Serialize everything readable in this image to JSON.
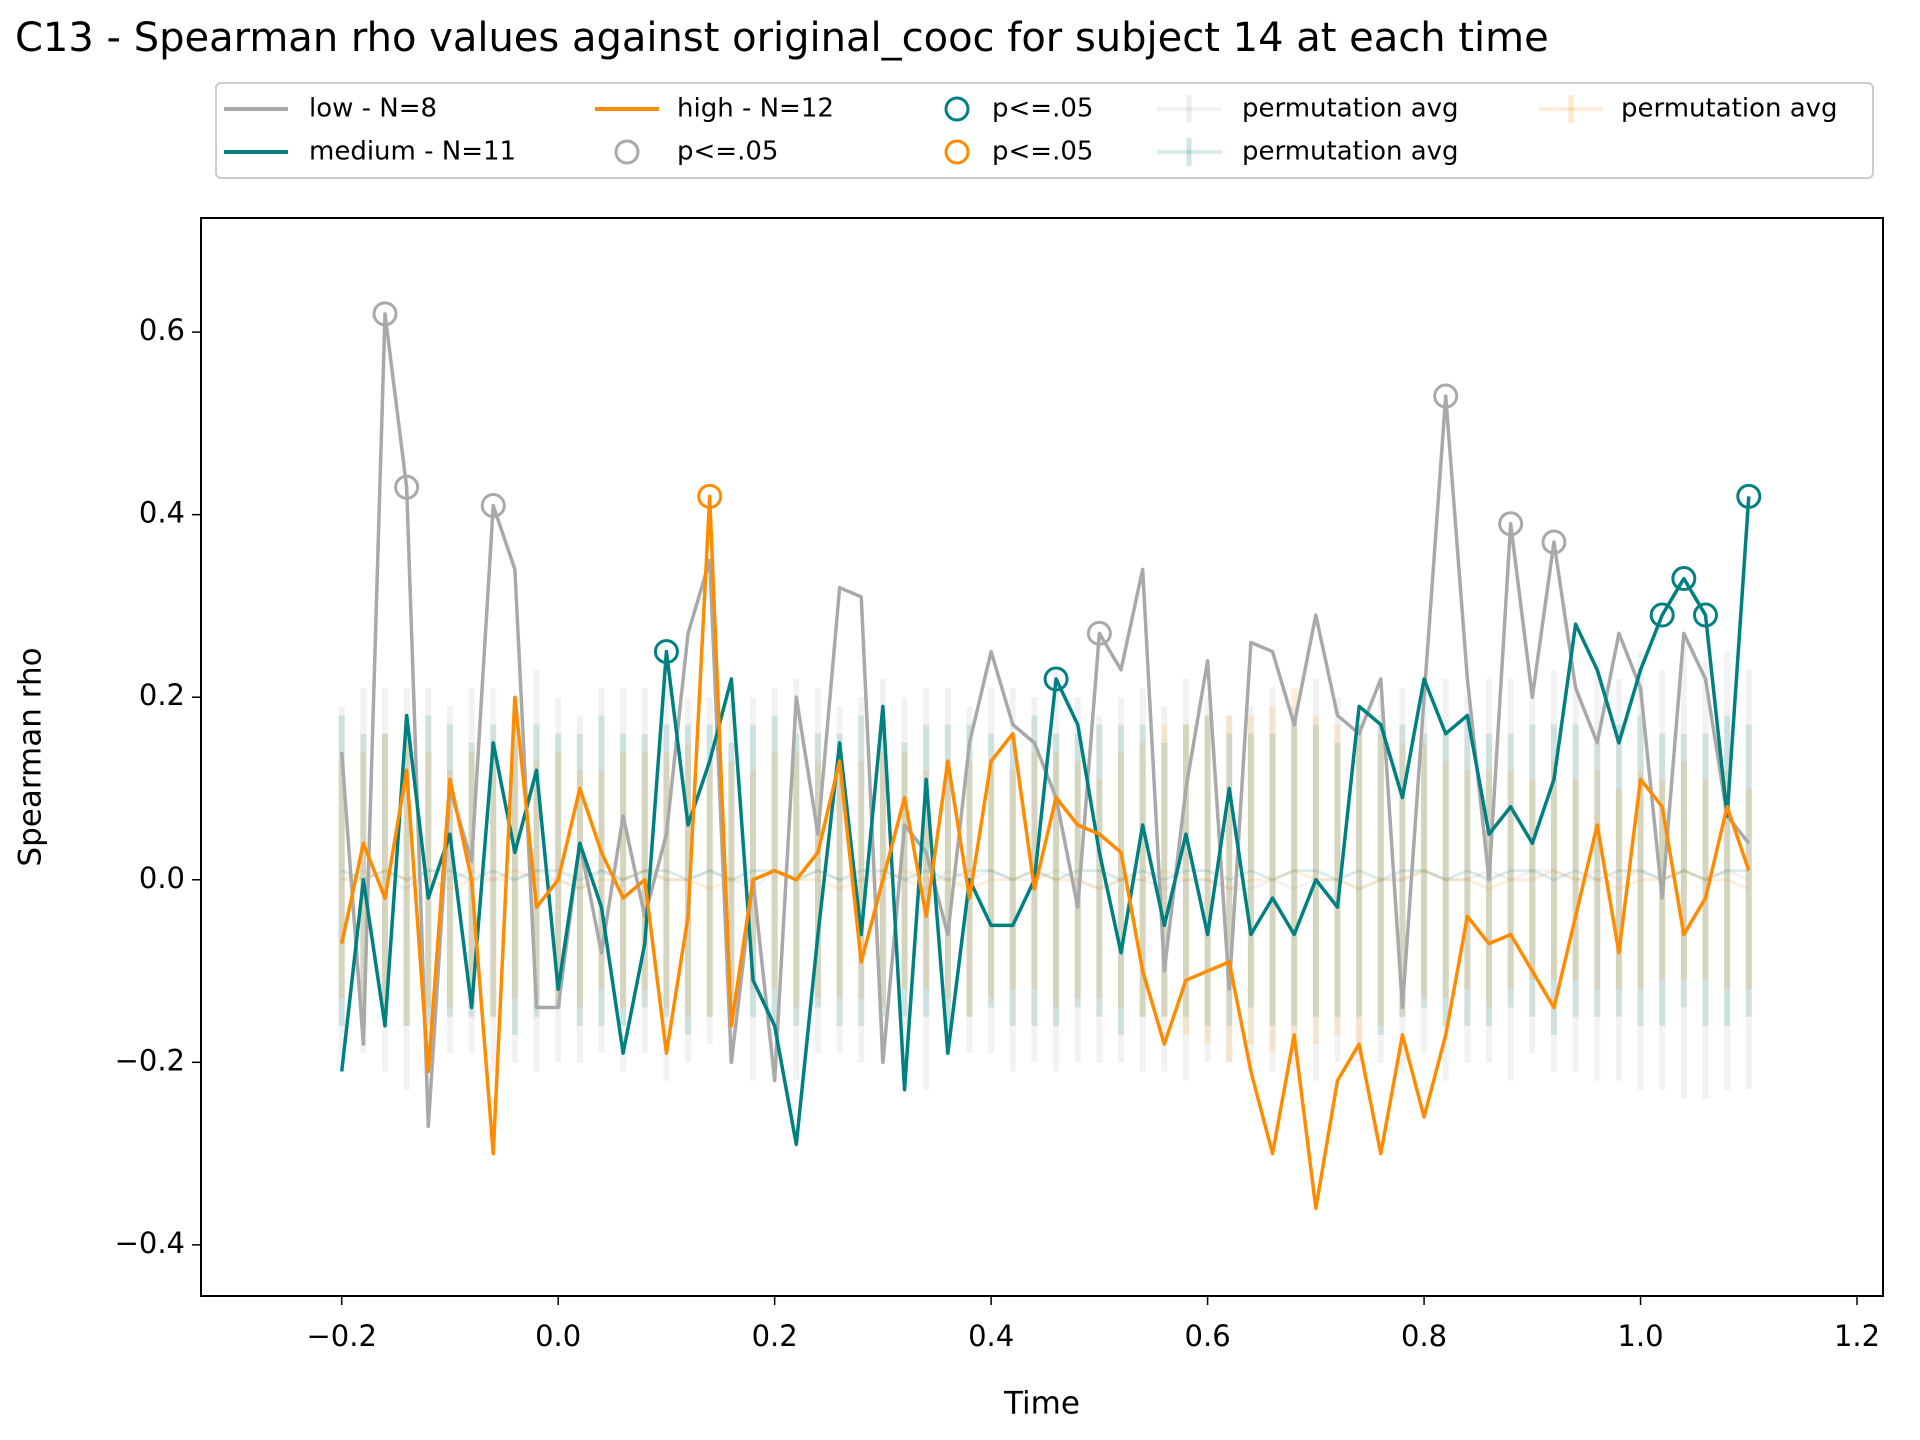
{
  "chart_data": {
    "type": "line",
    "title": "C13 - Spearman rho values against original_cooc for subject 14 at each time",
    "xlabel": "Time",
    "ylabel": "Spearman rho",
    "xlim": [
      -0.33,
      1.224
    ],
    "ylim": [
      -0.456,
      0.725
    ],
    "xticks": [
      {
        "value": -0.2,
        "label": "−0.2"
      },
      {
        "value": 0,
        "label": "0.0"
      },
      0.2,
      0.4,
      0.6,
      0.8,
      {
        "value": 1,
        "label": "1.0"
      },
      1.2
    ],
    "yticks": [
      {
        "value": -0.4,
        "label": "−0.4"
      },
      {
        "value": -0.2,
        "label": "−0.2"
      },
      {
        "value": 0,
        "label": "0.0"
      },
      0.2,
      0.4,
      0.6
    ],
    "legend": {
      "loc": "upper center",
      "ncol": 5
    },
    "x": [
      -0.2,
      -0.18,
      -0.16,
      -0.14,
      -0.12,
      -0.1,
      -0.08,
      -0.06,
      -0.04,
      -0.02,
      0,
      0.02,
      0.04,
      0.06,
      0.08,
      0.1,
      0.12,
      0.14,
      0.16,
      0.18,
      0.2,
      0.22,
      0.24,
      0.26,
      0.28,
      0.3,
      0.32,
      0.34,
      0.36,
      0.38,
      0.4,
      0.42,
      0.44,
      0.46,
      0.48,
      0.5,
      0.52,
      0.54,
      0.56,
      0.58,
      0.6,
      0.62,
      0.64,
      0.66,
      0.68,
      0.7,
      0.72,
      0.74,
      0.76,
      0.78,
      0.8,
      0.82,
      0.84,
      0.86,
      0.88,
      0.9,
      0.92,
      0.94,
      0.96,
      0.98,
      1,
      1.02,
      1.04,
      1.06,
      1.08,
      1.1
    ],
    "series": [
      {
        "name": "low - N=8",
        "color": "#a9a9a9",
        "values": [
          0.14,
          -0.18,
          0.62,
          0.43,
          -0.27,
          0.1,
          0.02,
          0.41,
          0.34,
          -0.14,
          -0.14,
          0.04,
          -0.08,
          0.07,
          -0.04,
          0.05,
          0.27,
          0.35,
          -0.2,
          0.0,
          -0.22,
          0.2,
          0.05,
          0.32,
          0.31,
          -0.2,
          0.06,
          0.03,
          -0.06,
          0.15,
          0.25,
          0.17,
          0.15,
          0.09,
          -0.03,
          0.27,
          0.23,
          0.34,
          -0.1,
          0.1,
          0.24,
          -0.12,
          0.26,
          0.25,
          0.17,
          0.29,
          0.18,
          0.16,
          0.22,
          -0.14,
          0.2,
          0.53,
          0.22,
          0.0,
          0.39,
          0.2,
          0.37,
          0.21,
          0.15,
          0.27,
          0.21,
          -0.02,
          0.27,
          0.22,
          0.07,
          0.04
        ]
      },
      {
        "name": "medium - N=11",
        "color": "#008080",
        "values": [
          -0.21,
          0.0,
          -0.16,
          0.18,
          -0.02,
          0.05,
          -0.14,
          0.15,
          0.03,
          0.12,
          -0.12,
          0.04,
          -0.03,
          -0.19,
          -0.07,
          0.25,
          0.06,
          0.13,
          0.22,
          -0.11,
          -0.16,
          -0.29,
          -0.06,
          0.15,
          -0.06,
          0.19,
          -0.23,
          0.11,
          -0.19,
          0.0,
          -0.05,
          -0.05,
          0.0,
          0.22,
          0.17,
          0.03,
          -0.08,
          0.06,
          -0.05,
          0.05,
          -0.06,
          0.1,
          -0.06,
          -0.02,
          -0.06,
          0.0,
          -0.03,
          0.19,
          0.17,
          0.09,
          0.22,
          0.16,
          0.18,
          0.05,
          0.08,
          0.04,
          0.11,
          0.28,
          0.23,
          0.15,
          0.23,
          0.29,
          0.33,
          0.29,
          0.07,
          0.42
        ]
      },
      {
        "name": "high - N=12",
        "color": "#ff8c00",
        "values": [
          -0.07,
          0.04,
          -0.02,
          0.12,
          -0.21,
          0.11,
          0.0,
          -0.3,
          0.2,
          -0.03,
          0.0,
          0.1,
          0.03,
          -0.02,
          0.0,
          -0.19,
          -0.04,
          0.42,
          -0.16,
          0.0,
          0.01,
          0.0,
          0.03,
          0.13,
          -0.09,
          0.0,
          0.09,
          -0.04,
          0.13,
          -0.02,
          0.13,
          0.16,
          -0.01,
          0.09,
          0.06,
          0.05,
          0.03,
          -0.1,
          -0.18,
          -0.11,
          -0.1,
          -0.09,
          -0.21,
          -0.3,
          -0.17,
          -0.36,
          -0.22,
          -0.18,
          -0.3,
          -0.17,
          -0.26,
          -0.17,
          -0.04,
          -0.07,
          -0.06,
          -0.1,
          -0.14,
          -0.04,
          0.06,
          -0.08,
          0.11,
          0.08,
          -0.06,
          -0.02,
          0.08,
          0.01
        ]
      }
    ],
    "significance": [
      {
        "name": "p<=.05",
        "color": "#a9a9a9",
        "x": [
          -0.16,
          -0.14,
          -0.06,
          0.5,
          0.82,
          0.88,
          0.92
        ],
        "values": [
          0.62,
          0.43,
          0.41,
          0.27,
          0.53,
          0.39,
          0.37
        ]
      },
      {
        "name": "p<=.05",
        "color": "#008080",
        "x": [
          0.1,
          0.46,
          1.02,
          1.04,
          1.06,
          1.1
        ],
        "values": [
          0.25,
          0.22,
          0.29,
          0.33,
          0.29,
          0.42
        ]
      },
      {
        "name": "p<=.05",
        "color": "#ff8c00",
        "x": [
          0.14
        ],
        "values": [
          0.42
        ]
      }
    ],
    "permutation": [
      {
        "name": "permutation avg",
        "color": "#a9a9a9",
        "values": [
          0.0,
          0.01,
          0.0,
          -0.01,
          0.01,
          0.0,
          0.01,
          0.0,
          0.0,
          0.01,
          0.0,
          -0.01,
          0.01,
          0.0,
          0.01,
          0.0,
          0.0,
          0.01,
          0.0,
          -0.01,
          0.01,
          0.0,
          0.01,
          0.0,
          0.0,
          0.01,
          0.0,
          -0.01,
          0.01,
          0.0,
          0.01,
          0.0,
          0.0,
          0.01,
          0.0,
          -0.01,
          0.0,
          0.0,
          -0.01,
          0.0,
          0.0,
          -0.01,
          -0.01,
          0.0,
          -0.01,
          0.0,
          0.0,
          -0.01,
          0.0,
          0.0,
          0.01,
          0.0,
          0.0,
          0.01,
          0.0,
          0.01,
          0.01,
          0.0,
          0.01,
          0.0,
          0.01,
          0.0,
          0.01,
          0.0,
          0.01,
          0.0
        ],
        "errors": [
          0.19,
          0.2,
          0.21,
          0.22,
          0.2,
          0.19,
          0.2,
          0.21,
          0.2,
          0.22,
          0.2,
          0.19,
          0.2,
          0.21,
          0.2,
          0.22,
          0.2,
          0.19,
          0.2,
          0.21,
          0.2,
          0.22,
          0.2,
          0.19,
          0.2,
          0.21,
          0.2,
          0.22,
          0.2,
          0.19,
          0.2,
          0.21,
          0.2,
          0.22,
          0.2,
          0.19,
          0.2,
          0.21,
          0.2,
          0.22,
          0.2,
          0.19,
          0.2,
          0.21,
          0.2,
          0.22,
          0.2,
          0.19,
          0.2,
          0.21,
          0.2,
          0.22,
          0.2,
          0.21,
          0.22,
          0.2,
          0.22,
          0.21,
          0.23,
          0.22,
          0.24,
          0.23,
          0.25,
          0.24,
          0.24,
          0.23
        ]
      },
      {
        "name": "permutation avg",
        "color": "#008080",
        "values": [
          0.01,
          0.0,
          0.01,
          0.0,
          0.01,
          0.01,
          0.0,
          0.01,
          0.0,
          0.01,
          0.01,
          0.0,
          0.01,
          0.0,
          0.01,
          0.01,
          0.0,
          0.01,
          0.0,
          0.01,
          0.01,
          0.0,
          0.01,
          0.0,
          0.01,
          0.01,
          0.0,
          0.01,
          0.0,
          0.01,
          0.01,
          0.0,
          0.01,
          0.0,
          0.01,
          0.01,
          0.0,
          0.01,
          0.0,
          0.01,
          0.01,
          0.0,
          0.01,
          0.0,
          0.01,
          0.01,
          0.0,
          0.01,
          0.0,
          0.01,
          0.01,
          0.0,
          0.01,
          0.0,
          0.01,
          0.01,
          0.0,
          0.01,
          0.0,
          0.01,
          0.01,
          0.0,
          0.01,
          0.0,
          0.01,
          0.01
        ],
        "errors": [
          0.17,
          0.16,
          0.15,
          0.16,
          0.17,
          0.16,
          0.15,
          0.16,
          0.17,
          0.16,
          0.15,
          0.16,
          0.17,
          0.16,
          0.15,
          0.16,
          0.17,
          0.16,
          0.15,
          0.16,
          0.17,
          0.16,
          0.15,
          0.16,
          0.17,
          0.16,
          0.15,
          0.16,
          0.17,
          0.16,
          0.15,
          0.16,
          0.17,
          0.16,
          0.15,
          0.16,
          0.17,
          0.16,
          0.15,
          0.16,
          0.17,
          0.16,
          0.15,
          0.16,
          0.17,
          0.16,
          0.15,
          0.16,
          0.17,
          0.16,
          0.15,
          0.16,
          0.17,
          0.16,
          0.15,
          0.16,
          0.17,
          0.16,
          0.15,
          0.16,
          0.17,
          0.16,
          0.15,
          0.16,
          0.17,
          0.16
        ]
      },
      {
        "name": "permutation avg",
        "color": "#ff8c00",
        "values": [
          0.0,
          0.0,
          0.01,
          0.0,
          0.0,
          -0.01,
          0.0,
          0.0,
          0.01,
          0.0,
          0.0,
          -0.01,
          0.0,
          0.0,
          0.01,
          0.0,
          0.0,
          -0.01,
          0.0,
          0.0,
          0.01,
          0.0,
          0.0,
          -0.01,
          0.0,
          0.0,
          0.01,
          0.0,
          0.0,
          -0.01,
          0.0,
          0.0,
          0.01,
          0.0,
          0.0,
          -0.01,
          0.0,
          0.0,
          0.01,
          0.0,
          0.0,
          -0.01,
          0.0,
          0.0,
          0.01,
          0.0,
          0.0,
          -0.01,
          0.0,
          0.0,
          0.01,
          0.0,
          0.0,
          -0.01,
          0.0,
          0.0,
          0.01,
          0.0,
          0.0,
          -0.01,
          0.0,
          0.0,
          0.01,
          0.0,
          0.0,
          -0.01
        ],
        "errors": [
          0.13,
          0.14,
          0.15,
          0.16,
          0.14,
          0.13,
          0.14,
          0.15,
          0.14,
          0.13,
          0.14,
          0.13,
          0.12,
          0.14,
          0.13,
          0.14,
          0.15,
          0.14,
          0.13,
          0.12,
          0.13,
          0.14,
          0.13,
          0.12,
          0.13,
          0.14,
          0.13,
          0.12,
          0.13,
          0.14,
          0.13,
          0.12,
          0.13,
          0.14,
          0.13,
          0.12,
          0.14,
          0.15,
          0.16,
          0.17,
          0.18,
          0.19,
          0.18,
          0.19,
          0.2,
          0.18,
          0.17,
          0.18,
          0.16,
          0.15,
          0.14,
          0.13,
          0.12,
          0.13,
          0.12,
          0.11,
          0.12,
          0.11,
          0.12,
          0.11,
          0.12,
          0.11,
          0.12,
          0.11,
          0.12,
          0.11
        ]
      }
    ]
  }
}
